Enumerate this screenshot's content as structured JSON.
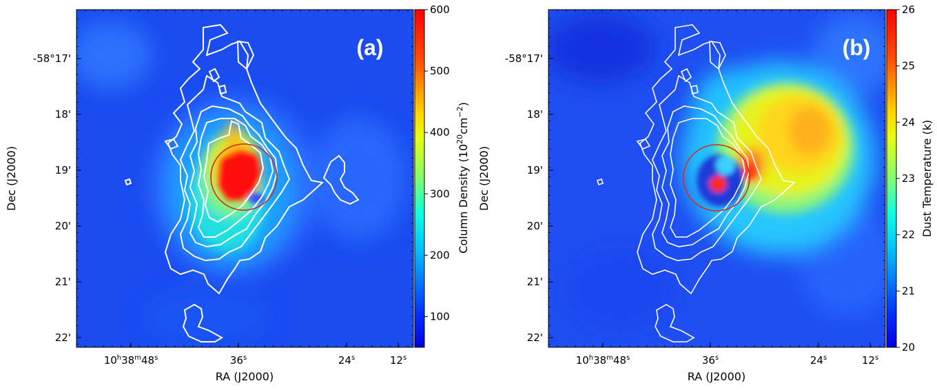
{
  "chart_data": [
    {
      "type": "heatmap",
      "panel_label": "(a)",
      "xlabel": "RA (J2000)",
      "ylabel": "Dec (J2000)",
      "x_ticks": [
        {
          "label": "10h38m48s",
          "h": "10",
          "m": "38",
          "s": "48"
        },
        {
          "label": "36s",
          "s": "36"
        },
        {
          "label": "24s",
          "s": "24"
        },
        {
          "label": "12s",
          "s": "12"
        }
      ],
      "y_ticks": [
        "-58°17'",
        "18'",
        "19'",
        "20'",
        "21'",
        "22'"
      ],
      "colorbar": {
        "label": "Column Density (10^20 cm^-2)",
        "label_parts": {
          "main": "Column Density (10",
          "exp1": "20",
          "mid": "cm",
          "exp2": "−2",
          "end": ")"
        },
        "range": [
          50,
          600
        ],
        "ticks": [
          "100",
          "200",
          "300",
          "400",
          "500",
          "600"
        ],
        "colormap": "jet"
      },
      "circle_color": "#d42a2a",
      "contour_color": "#ffffff"
    },
    {
      "type": "heatmap",
      "panel_label": "(b)",
      "xlabel": "RA (J2000)",
      "ylabel": "Dec (J2000)",
      "x_ticks": [
        {
          "label": "10h38m48s",
          "h": "10",
          "m": "38",
          "s": "48"
        },
        {
          "label": "36s",
          "s": "36"
        },
        {
          "label": "24s",
          "s": "24"
        },
        {
          "label": "12s",
          "s": "12"
        }
      ],
      "y_ticks": [
        "-58°17'",
        "18'",
        "19'",
        "20'",
        "21'",
        "22'"
      ],
      "colorbar": {
        "label": "Dust Temperature (k)",
        "range": [
          20,
          26
        ],
        "ticks": [
          "20",
          "21",
          "22",
          "23",
          "24",
          "25",
          "26"
        ],
        "colormap": "jet"
      },
      "circle_color": "#d42a2a",
      "contour_color": "#ffffff"
    }
  ]
}
